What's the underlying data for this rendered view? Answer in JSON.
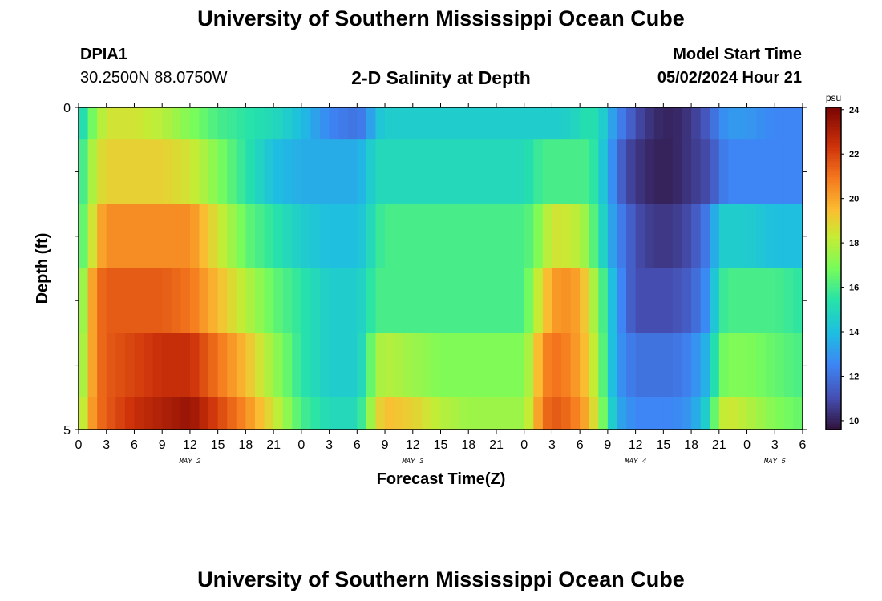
{
  "header": {
    "title": "University of Southern Mississippi Ocean Cube",
    "station": "DPIA1",
    "coordinates": "30.2500N  88.0750W",
    "subtitle": "2-D Salinity at Depth",
    "model_label": "Model Start Time",
    "model_time": "05/02/2024 Hour 21"
  },
  "footer": {
    "title": "University of Southern Mississippi Ocean Cube"
  },
  "chart_data": {
    "type": "heatmap",
    "title": "2-D Salinity at Depth",
    "xlabel": "Forecast Time(Z)",
    "ylabel": "Depth (ft)",
    "y_tick_labels": [
      "0",
      "5"
    ],
    "ylim": [
      0,
      5
    ],
    "x_tick_labels": [
      "0",
      "3",
      "6",
      "9",
      "12",
      "15",
      "18",
      "21",
      "0",
      "3",
      "6",
      "9",
      "12",
      "15",
      "18",
      "21",
      "0",
      "3",
      "6",
      "9",
      "12",
      "15",
      "18",
      "21",
      "0",
      "3",
      "6"
    ],
    "date_labels": [
      {
        "label": "MAY 2",
        "hour": 12
      },
      {
        "label": "MAY 3",
        "hour": 36
      },
      {
        "label": "MAY 4",
        "hour": 60
      },
      {
        "label": "MAY 5",
        "hour": 75
      }
    ],
    "hours_range": [
      0,
      78
    ],
    "depth_layers": [
      "0-0.5 ft",
      "0.5-1.5 ft",
      "1.5-2.5 ft",
      "2.5-3.5 ft",
      "3.5-4.5 ft",
      "4.5-5 ft"
    ],
    "colorbar": {
      "unit": "psu",
      "min": 9.6,
      "max": 24.1,
      "ticks": [
        "10",
        "12",
        "14",
        "16",
        "18",
        "20",
        "22",
        "24"
      ],
      "tick_values": [
        10,
        12,
        14,
        16,
        18,
        20,
        22,
        24
      ]
    },
    "salinity_keyframes": {
      "hours": [
        0,
        1,
        2,
        3,
        6,
        9,
        12,
        15,
        18,
        21,
        24,
        27,
        30,
        31,
        32,
        33,
        36,
        39,
        42,
        45,
        48,
        49,
        50,
        51,
        52,
        54,
        55,
        56,
        57,
        58,
        59,
        60,
        62,
        64,
        66,
        68,
        69,
        70,
        72,
        75,
        78
      ],
      "layers": [
        [
          14.5,
          16,
          17.5,
          18.5,
          18.5,
          18,
          17,
          16,
          15.5,
          15,
          14,
          12.5,
          12,
          12.5,
          14,
          14.5,
          14.5,
          14.5,
          14.5,
          14.5,
          14.5,
          14.5,
          14.5,
          14.5,
          14.5,
          15,
          15.5,
          15,
          14,
          12.5,
          12,
          11,
          10.2,
          10,
          10.5,
          11.5,
          12.5,
          13,
          13,
          12.5,
          12.5
        ],
        [
          15,
          17,
          18.5,
          19,
          19,
          19,
          18.5,
          17,
          15.5,
          14,
          13.5,
          13.5,
          13.5,
          14,
          15,
          15,
          15,
          15,
          15,
          15,
          15,
          15.5,
          16,
          16,
          16,
          16,
          16,
          15,
          13.5,
          12,
          11,
          10.5,
          10,
          10,
          10.5,
          11,
          12,
          12.5,
          12.5,
          12.5,
          12.5
        ],
        [
          15.5,
          17.5,
          19.5,
          20.5,
          20.5,
          20.5,
          20.5,
          18.5,
          16.5,
          15.5,
          14.5,
          14,
          14,
          14.5,
          15.5,
          16,
          16,
          16,
          16,
          16,
          16,
          16.5,
          17.5,
          18.5,
          18.5,
          18,
          17,
          15.5,
          14,
          12.5,
          12,
          11,
          10.5,
          10.5,
          11,
          12.5,
          14.5,
          14.5,
          14.5,
          14,
          14
        ],
        [
          16,
          19,
          21,
          21.5,
          21.5,
          21.5,
          21,
          19.5,
          18,
          16.5,
          15.5,
          14.5,
          14.5,
          15,
          16,
          16,
          16,
          16,
          16,
          16,
          16,
          17.5,
          19,
          20,
          20.5,
          20,
          18.5,
          17,
          15,
          13,
          12,
          11,
          11,
          11,
          11.5,
          13,
          15.5,
          16,
          16,
          16,
          15.5
        ],
        [
          16.5,
          19,
          21,
          21.5,
          22,
          22.5,
          22.5,
          21,
          19.5,
          17.5,
          15.5,
          14.5,
          14.5,
          15.5,
          17.5,
          18,
          17.5,
          17,
          17,
          17,
          17,
          18.5,
          20.5,
          21,
          21,
          20,
          19,
          17.5,
          15,
          13,
          12.5,
          12,
          12,
          12,
          12.5,
          14,
          16.5,
          17,
          17,
          16.5,
          16
        ],
        [
          17,
          19.5,
          21,
          21.5,
          22.5,
          23,
          23.5,
          22,
          20.5,
          18.5,
          16,
          15,
          15,
          16.5,
          18.5,
          19.5,
          19,
          18,
          17.5,
          17.5,
          17.5,
          19,
          21,
          21.5,
          21.5,
          20.5,
          19.5,
          18,
          15.5,
          13.5,
          13,
          12.5,
          12.5,
          12.5,
          13,
          15,
          18,
          18.5,
          18,
          17,
          16.5
        ]
      ]
    }
  }
}
